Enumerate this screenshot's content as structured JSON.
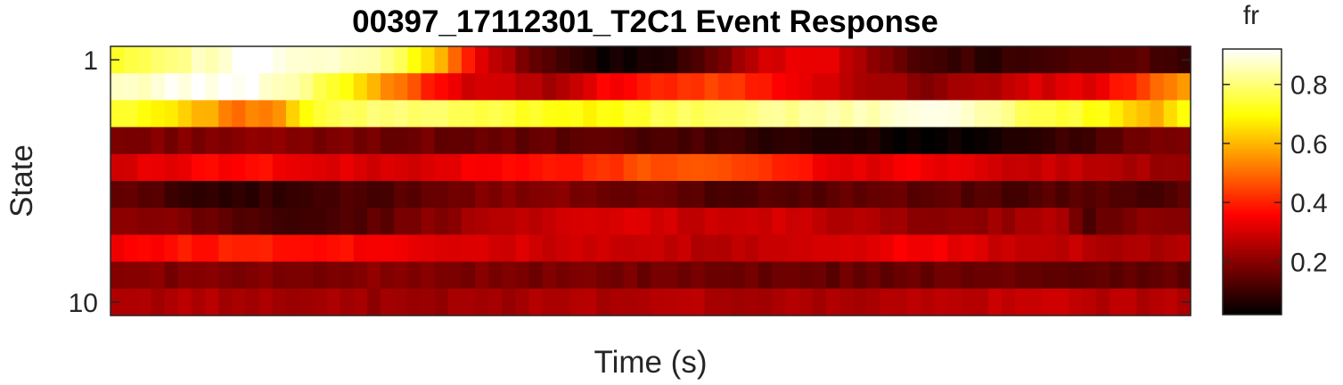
{
  "chart_data": {
    "type": "heatmap",
    "title": "00397_17112301_T2C1 Event Response",
    "xlabel": "Time (s)",
    "ylabel": "State",
    "colorbar": {
      "label": "fr",
      "colormap": "hot",
      "clim": [
        0.02,
        0.92
      ],
      "ticks": [
        0.2,
        0.4,
        0.6,
        0.8
      ],
      "tick_labels": [
        "0.2",
        "0.4",
        "0.6",
        "0.8"
      ]
    },
    "y_ticks": [
      1,
      10
    ],
    "y_tick_labels": [
      "1",
      "10"
    ],
    "rows": 10,
    "columns": 80,
    "row_profiles": [
      [
        [
          0,
          0.75
        ],
        [
          6,
          0.85
        ],
        [
          10,
          0.92
        ],
        [
          20,
          0.82
        ],
        [
          24,
          0.6
        ],
        [
          27,
          0.3
        ],
        [
          32,
          0.12
        ],
        [
          36,
          0.04
        ],
        [
          40,
          0.05
        ],
        [
          44,
          0.15
        ],
        [
          48,
          0.3
        ],
        [
          52,
          0.35
        ],
        [
          56,
          0.2
        ],
        [
          60,
          0.12
        ],
        [
          65,
          0.08
        ],
        [
          70,
          0.12
        ],
        [
          76,
          0.15
        ],
        [
          79,
          0.08
        ]
      ],
      [
        [
          0,
          0.85
        ],
        [
          4,
          0.9
        ],
        [
          10,
          0.92
        ],
        [
          14,
          0.82
        ],
        [
          17,
          0.7
        ],
        [
          20,
          0.55
        ],
        [
          23,
          0.4
        ],
        [
          26,
          0.3
        ],
        [
          29,
          0.3
        ],
        [
          32,
          0.22
        ],
        [
          36,
          0.35
        ],
        [
          40,
          0.4
        ],
        [
          44,
          0.45
        ],
        [
          48,
          0.4
        ],
        [
          52,
          0.3
        ],
        [
          56,
          0.25
        ],
        [
          60,
          0.2
        ],
        [
          64,
          0.25
        ],
        [
          68,
          0.3
        ],
        [
          72,
          0.32
        ],
        [
          75,
          0.4
        ],
        [
          77,
          0.5
        ],
        [
          79,
          0.55
        ]
      ],
      [
        [
          0,
          0.75
        ],
        [
          5,
          0.65
        ],
        [
          9,
          0.5
        ],
        [
          12,
          0.55
        ],
        [
          15,
          0.75
        ],
        [
          20,
          0.8
        ],
        [
          28,
          0.75
        ],
        [
          35,
          0.7
        ],
        [
          40,
          0.75
        ],
        [
          45,
          0.8
        ],
        [
          50,
          0.82
        ],
        [
          55,
          0.85
        ],
        [
          60,
          0.9
        ],
        [
          63,
          0.88
        ],
        [
          66,
          0.8
        ],
        [
          70,
          0.75
        ],
        [
          74,
          0.68
        ],
        [
          77,
          0.6
        ],
        [
          79,
          0.7
        ]
      ],
      [
        [
          0,
          0.18
        ],
        [
          10,
          0.2
        ],
        [
          20,
          0.17
        ],
        [
          30,
          0.15
        ],
        [
          40,
          0.12
        ],
        [
          50,
          0.08
        ],
        [
          56,
          0.05
        ],
        [
          60,
          0.03
        ],
        [
          64,
          0.04
        ],
        [
          68,
          0.06
        ],
        [
          72,
          0.12
        ],
        [
          76,
          0.16
        ],
        [
          79,
          0.18
        ]
      ],
      [
        [
          0,
          0.3
        ],
        [
          6,
          0.35
        ],
        [
          10,
          0.38
        ],
        [
          14,
          0.32
        ],
        [
          20,
          0.3
        ],
        [
          28,
          0.35
        ],
        [
          35,
          0.4
        ],
        [
          38,
          0.45
        ],
        [
          42,
          0.48
        ],
        [
          46,
          0.45
        ],
        [
          50,
          0.38
        ],
        [
          55,
          0.32
        ],
        [
          60,
          0.35
        ],
        [
          65,
          0.3
        ],
        [
          70,
          0.28
        ],
        [
          75,
          0.25
        ],
        [
          79,
          0.2
        ]
      ],
      [
        [
          0,
          0.15
        ],
        [
          5,
          0.1
        ],
        [
          10,
          0.08
        ],
        [
          15,
          0.1
        ],
        [
          20,
          0.13
        ],
        [
          25,
          0.18
        ],
        [
          30,
          0.2
        ],
        [
          35,
          0.18
        ],
        [
          40,
          0.15
        ],
        [
          45,
          0.12
        ],
        [
          50,
          0.13
        ],
        [
          55,
          0.15
        ],
        [
          60,
          0.15
        ],
        [
          65,
          0.12
        ],
        [
          70,
          0.13
        ],
        [
          75,
          0.12
        ],
        [
          79,
          0.13
        ]
      ],
      [
        [
          0,
          0.2
        ],
        [
          5,
          0.18
        ],
        [
          10,
          0.12
        ],
        [
          15,
          0.1
        ],
        [
          20,
          0.15
        ],
        [
          25,
          0.22
        ],
        [
          30,
          0.28
        ],
        [
          35,
          0.3
        ],
        [
          40,
          0.3
        ],
        [
          45,
          0.28
        ],
        [
          50,
          0.3
        ],
        [
          55,
          0.25
        ],
        [
          60,
          0.2
        ],
        [
          65,
          0.22
        ],
        [
          70,
          0.25
        ],
        [
          72,
          0.12
        ],
        [
          76,
          0.22
        ],
        [
          79,
          0.2
        ]
      ],
      [
        [
          0,
          0.35
        ],
        [
          5,
          0.38
        ],
        [
          10,
          0.4
        ],
        [
          15,
          0.38
        ],
        [
          20,
          0.35
        ],
        [
          25,
          0.32
        ],
        [
          30,
          0.3
        ],
        [
          35,
          0.28
        ],
        [
          40,
          0.28
        ],
        [
          45,
          0.25
        ],
        [
          50,
          0.3
        ],
        [
          55,
          0.32
        ],
        [
          60,
          0.35
        ],
        [
          65,
          0.3
        ],
        [
          70,
          0.28
        ],
        [
          75,
          0.25
        ],
        [
          79,
          0.25
        ]
      ],
      [
        [
          0,
          0.2
        ],
        [
          10,
          0.18
        ],
        [
          20,
          0.2
        ],
        [
          30,
          0.18
        ],
        [
          40,
          0.17
        ],
        [
          50,
          0.15
        ],
        [
          60,
          0.16
        ],
        [
          70,
          0.15
        ],
        [
          79,
          0.15
        ]
      ],
      [
        [
          0,
          0.25
        ],
        [
          10,
          0.25
        ],
        [
          20,
          0.22
        ],
        [
          30,
          0.24
        ],
        [
          40,
          0.26
        ],
        [
          50,
          0.24
        ],
        [
          60,
          0.26
        ],
        [
          70,
          0.28
        ],
        [
          75,
          0.26
        ],
        [
          79,
          0.25
        ]
      ]
    ],
    "colorbar_ticks_note": ""
  }
}
